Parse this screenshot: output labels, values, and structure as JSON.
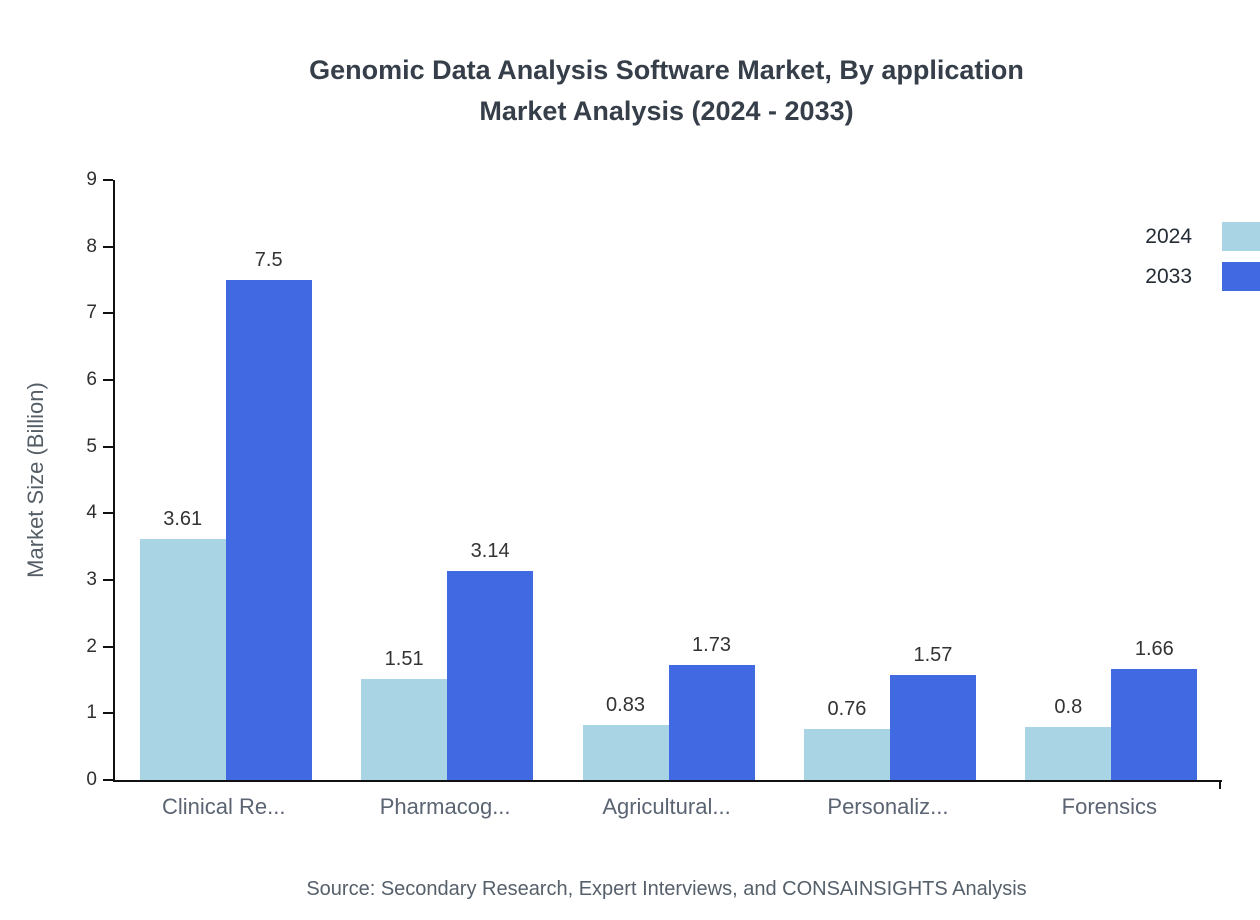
{
  "title": {
    "line1": "Genomic Data Analysis Software Market, By application",
    "line2": "Market Analysis (2024 - 2033)"
  },
  "source": "Source: Secondary Research, Expert Interviews, and CONSAINSIGHTS Analysis",
  "chart_data": {
    "type": "bar",
    "title": "Genomic Data Analysis Software Market, By application Market Analysis (2024 - 2033)",
    "categories": [
      "Clinical Re...",
      "Pharmacog...",
      "Agricultural...",
      "Personaliz...",
      "Forensics"
    ],
    "series": [
      {
        "name": "2024",
        "color": "#a8d4e4",
        "values": [
          3.61,
          1.51,
          0.83,
          0.76,
          0.8
        ]
      },
      {
        "name": "2033",
        "color": "#4169e1",
        "values": [
          7.5,
          3.14,
          1.73,
          1.57,
          1.66
        ]
      }
    ],
    "xlabel": "",
    "ylabel": "Market Size (Billion)",
    "ylim": [
      0,
      9
    ],
    "yticks": [
      0,
      1,
      2,
      3,
      4,
      5,
      6,
      7,
      8,
      9
    ],
    "grid": false,
    "legend_position": "top-right"
  }
}
